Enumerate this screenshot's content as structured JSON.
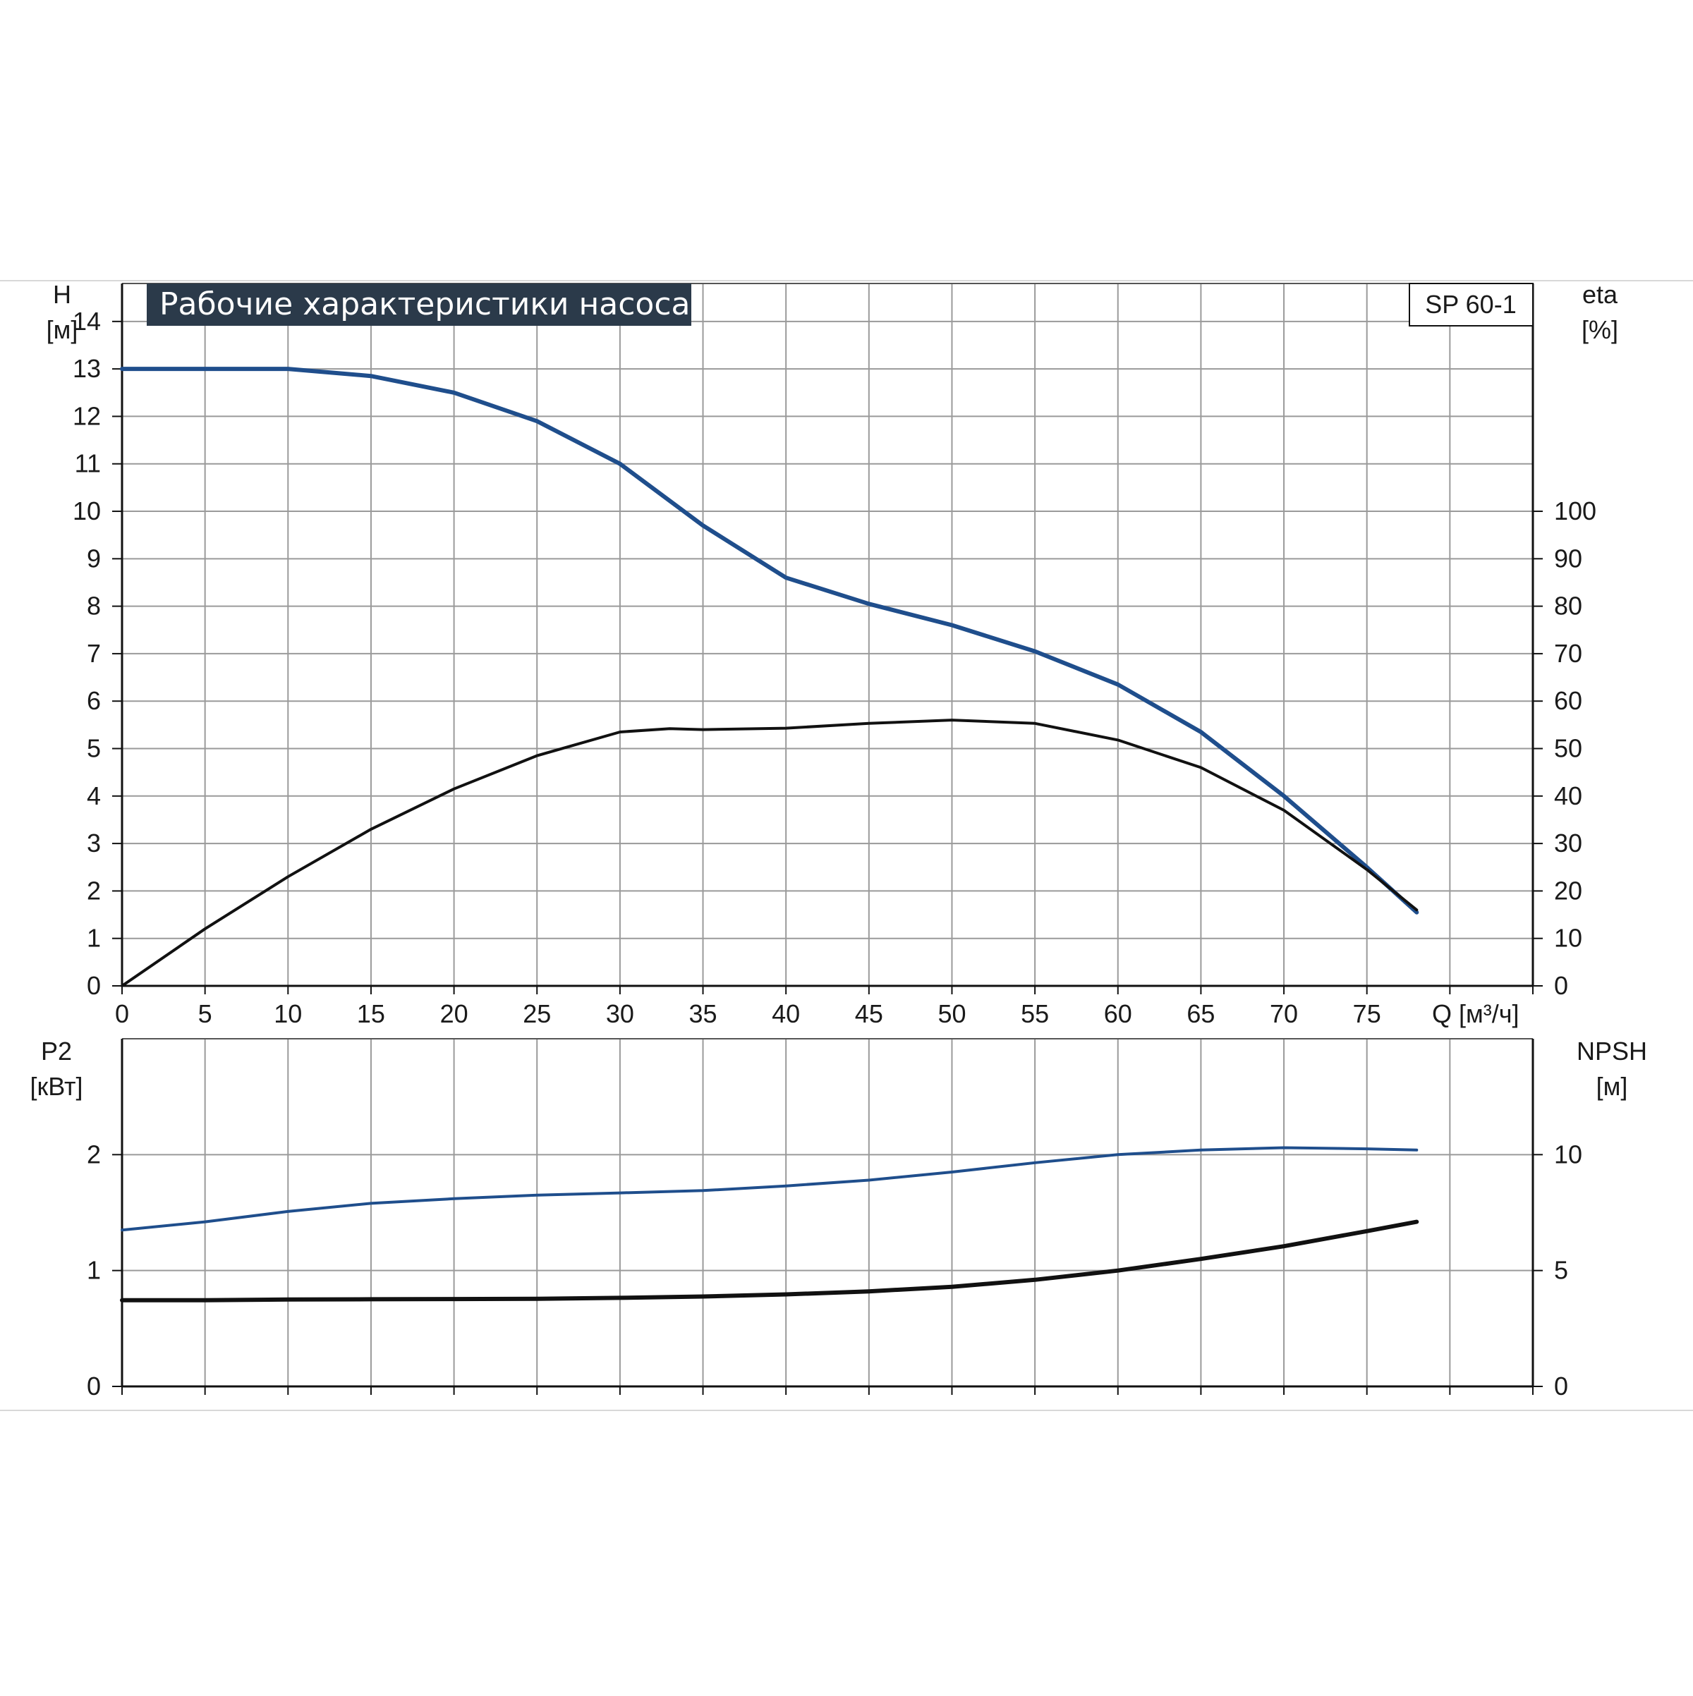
{
  "chart_data": [
    {
      "type": "line",
      "title": "Рабочие характеристики насоса",
      "model_label": "SP 60-1",
      "xlabel": "Q [м³/ч]",
      "x_ticks": [
        0,
        5,
        10,
        15,
        20,
        25,
        30,
        35,
        40,
        45,
        50,
        55,
        60,
        65,
        70,
        75
      ],
      "xlim": [
        0,
        85
      ],
      "ylabel_left": [
        "H",
        "[м]"
      ],
      "ylabel_right": [
        "eta",
        "[%]"
      ],
      "ylim_left": [
        0,
        14
      ],
      "ylim_right": [
        0,
        140
      ],
      "y_ticks_left": [
        0,
        1,
        2,
        3,
        4,
        5,
        6,
        7,
        8,
        9,
        10,
        11,
        12,
        13,
        14
      ],
      "y_ticks_right": [
        0,
        10,
        20,
        30,
        40,
        50,
        60,
        70,
        80,
        90,
        100
      ],
      "grid": true,
      "series": [
        {
          "axis": "left",
          "color": "#1f4e8c",
          "x": [
            0,
            5,
            10,
            15,
            20,
            25,
            30,
            35,
            40,
            45,
            50,
            55,
            60,
            65,
            70,
            75,
            78
          ],
          "y": [
            13.0,
            13.0,
            13.0,
            12.85,
            12.5,
            11.9,
            11.0,
            9.7,
            8.6,
            8.05,
            7.6,
            7.05,
            6.35,
            5.35,
            4.0,
            2.5,
            1.55
          ]
        },
        {
          "axis": "right",
          "color": "#111111",
          "x": [
            0,
            5,
            10,
            15,
            20,
            25,
            30,
            33,
            35,
            40,
            45,
            50,
            55,
            60,
            65,
            70,
            75,
            78
          ],
          "y": [
            0,
            12,
            23,
            33,
            41.5,
            48.5,
            53.5,
            54.2,
            54.0,
            54.3,
            55.3,
            56.0,
            55.3,
            51.8,
            46.0,
            37.0,
            24.5,
            16
          ]
        }
      ]
    },
    {
      "type": "line",
      "ylabel_left": [
        "P2",
        "[кВт]"
      ],
      "ylabel_right": [
        "NPSH",
        "[м]"
      ],
      "xlim": [
        0,
        85
      ],
      "ylim_left": [
        0,
        3
      ],
      "ylim_right": [
        0,
        15
      ],
      "y_ticks_left": [
        0,
        1,
        2
      ],
      "y_ticks_right": [
        0,
        5,
        10
      ],
      "grid": true,
      "series": [
        {
          "axis": "left",
          "color": "#1f4e8c",
          "x": [
            0,
            5,
            10,
            15,
            20,
            25,
            30,
            35,
            40,
            45,
            50,
            55,
            60,
            65,
            70,
            75,
            78
          ],
          "y": [
            1.35,
            1.42,
            1.51,
            1.58,
            1.62,
            1.65,
            1.67,
            1.69,
            1.73,
            1.78,
            1.85,
            1.93,
            2.0,
            2.04,
            2.06,
            2.05,
            2.04
          ]
        },
        {
          "axis": "right",
          "color": "#111111",
          "x": [
            0,
            5,
            10,
            15,
            20,
            25,
            30,
            35,
            40,
            45,
            50,
            55,
            60,
            65,
            70,
            75,
            78
          ],
          "y": [
            3.72,
            3.72,
            3.75,
            3.76,
            3.77,
            3.78,
            3.82,
            3.88,
            3.97,
            4.1,
            4.3,
            4.6,
            5.0,
            5.5,
            6.05,
            6.7,
            7.1
          ]
        }
      ]
    }
  ]
}
